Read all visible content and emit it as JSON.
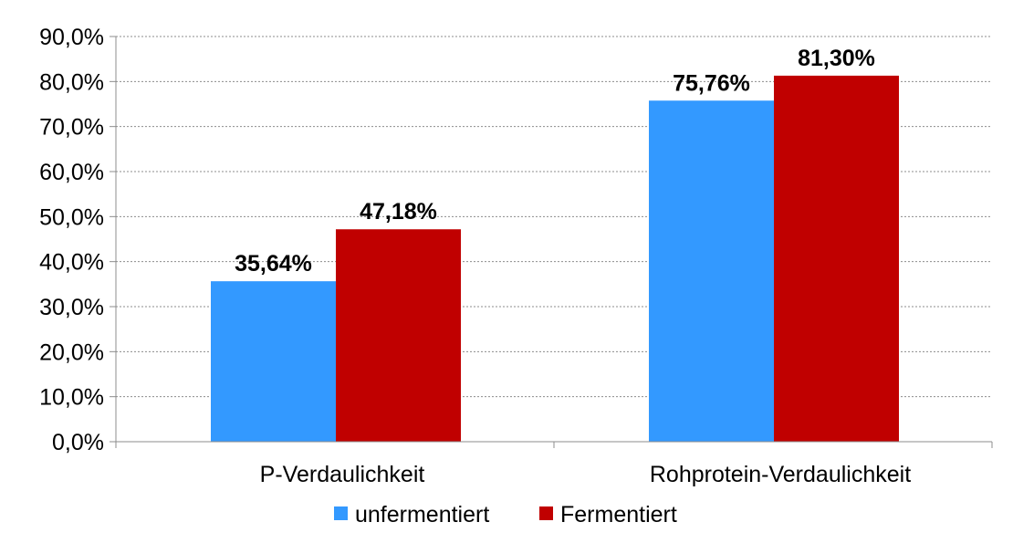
{
  "chart_data": {
    "type": "bar",
    "title": "",
    "xlabel": "",
    "ylabel": "",
    "categories": [
      "P-Verdaulichkeit",
      "Rohprotein-Verdaulichkeit"
    ],
    "series": [
      {
        "name": "unfermentiert",
        "color": "#3399FF",
        "values": [
          35.64,
          75.76
        ],
        "labels": [
          "35,64%",
          "75,76%"
        ]
      },
      {
        "name": "Fermentiert",
        "color": "#C00000",
        "values": [
          47.18,
          81.3
        ],
        "labels": [
          "47,18%",
          "81,30%"
        ]
      }
    ],
    "ylim": [
      0,
      90
    ],
    "yticks": [
      0,
      10,
      20,
      30,
      40,
      50,
      60,
      70,
      80,
      90
    ],
    "ytick_labels": [
      "0,0%",
      "10,0%",
      "20,0%",
      "30,0%",
      "40,0%",
      "50,0%",
      "60,0%",
      "70,0%",
      "80,0%",
      "90,0%"
    ],
    "grid": true,
    "grid_style": "dotted",
    "legend_position": "bottom"
  }
}
